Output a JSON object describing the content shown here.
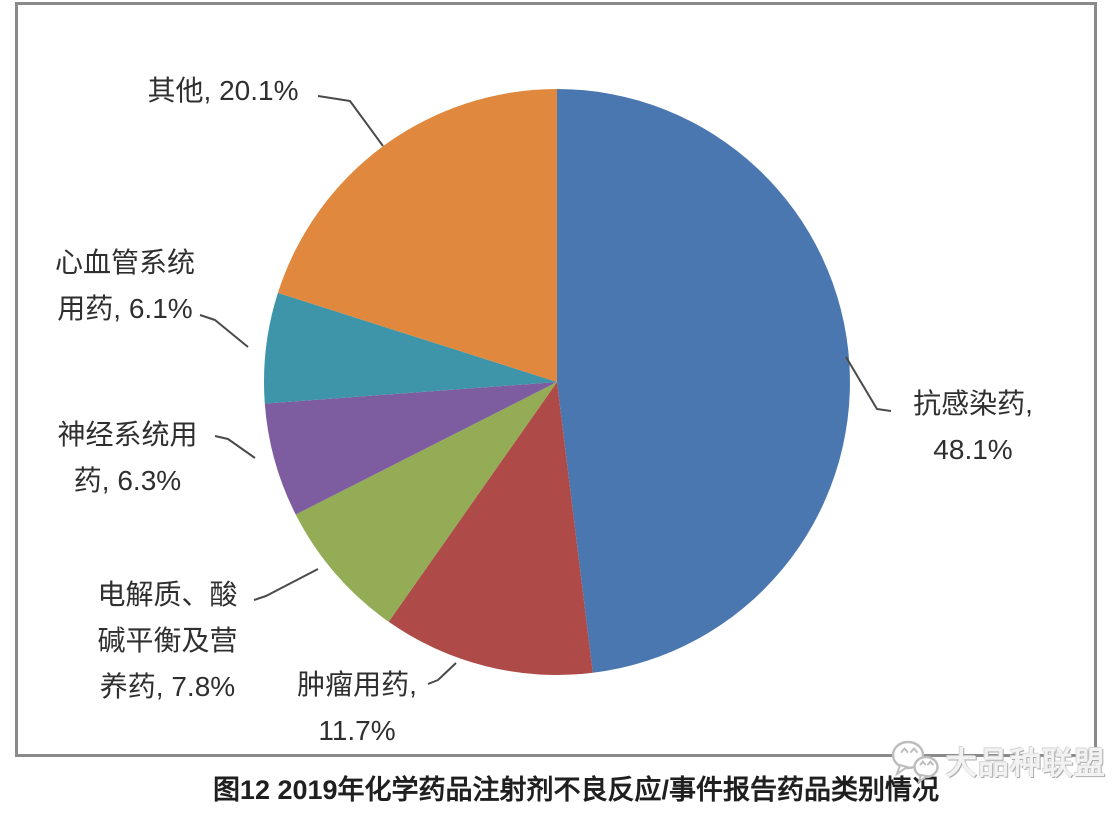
{
  "chart_data": {
    "type": "pie",
    "title": "图12 2019年化学药品注射剂不良反应/事件报告药品类别情况",
    "unit": "%",
    "legend": "none",
    "labels_position": "outside-with-leader-lines",
    "start_angle_deg": 0,
    "direction": "clockwise",
    "slices": [
      {
        "label": "抗感染药",
        "value": 48.1,
        "color": "#4A77B0",
        "data_label": "抗感染药,\n48.1%"
      },
      {
        "label": "肿瘤用药",
        "value": 11.7,
        "color": "#AE4A47",
        "data_label": "肿瘤用药,\n11.7%"
      },
      {
        "label": "电解质、酸碱平衡及营养药",
        "value": 7.8,
        "color": "#93AC55",
        "data_label": "电解质、酸\n碱平衡及营\n养药, 7.8%"
      },
      {
        "label": "神经系统用药",
        "value": 6.3,
        "color": "#7D5DA0",
        "data_label": "神经系统用\n药, 6.3%"
      },
      {
        "label": "心血管系统用药",
        "value": 6.1,
        "color": "#3E94A8",
        "data_label": "心血管系统\n用药, 6.1%"
      },
      {
        "label": "其他",
        "value": 20.1,
        "color": "#DF883E",
        "data_label": "其他, 20.1%"
      }
    ]
  },
  "caption": "图12 2019年化学药品注射剂不良反应/事件报告药品类别情况",
  "watermark": {
    "name": "大品种联盟",
    "icon": "wechat-bubbles-icon",
    "color": "#c9c9c9"
  },
  "frame_color": "#8a8a8a",
  "leader_line_color": "#4a4a4a"
}
